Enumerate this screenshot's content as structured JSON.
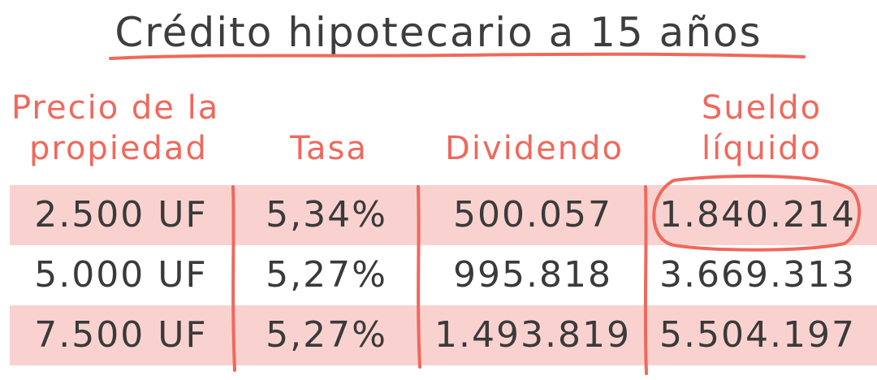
{
  "title": "Crédito hipotecario a 15 años",
  "headers": {
    "precio": {
      "line1": "Precio de la",
      "line2": "propiedad"
    },
    "tasa": {
      "line1": "",
      "line2": "Tasa"
    },
    "dividendo": {
      "line1": "",
      "line2": "Dividendo"
    },
    "sueldo": {
      "line1": "Sueldo",
      "line2": "líquido"
    }
  },
  "rows": [
    {
      "precio": "2.500 UF",
      "tasa": "5,34%",
      "dividendo": "500.057",
      "sueldo": "1.840.214",
      "highlighted": true,
      "circled": true
    },
    {
      "precio": "5.000 UF",
      "tasa": "5,27%",
      "dividendo": "995.818",
      "sueldo": "3.669.313",
      "highlighted": false,
      "circled": false
    },
    {
      "precio": "7.500 UF",
      "tasa": "5,27%",
      "dividendo": "1.493.819",
      "sueldo": "5.504.197",
      "highlighted": true,
      "circled": false
    }
  ],
  "colors": {
    "accent": "#f0685c",
    "band": "#f9d2cf",
    "text": "#3a3a3a"
  }
}
